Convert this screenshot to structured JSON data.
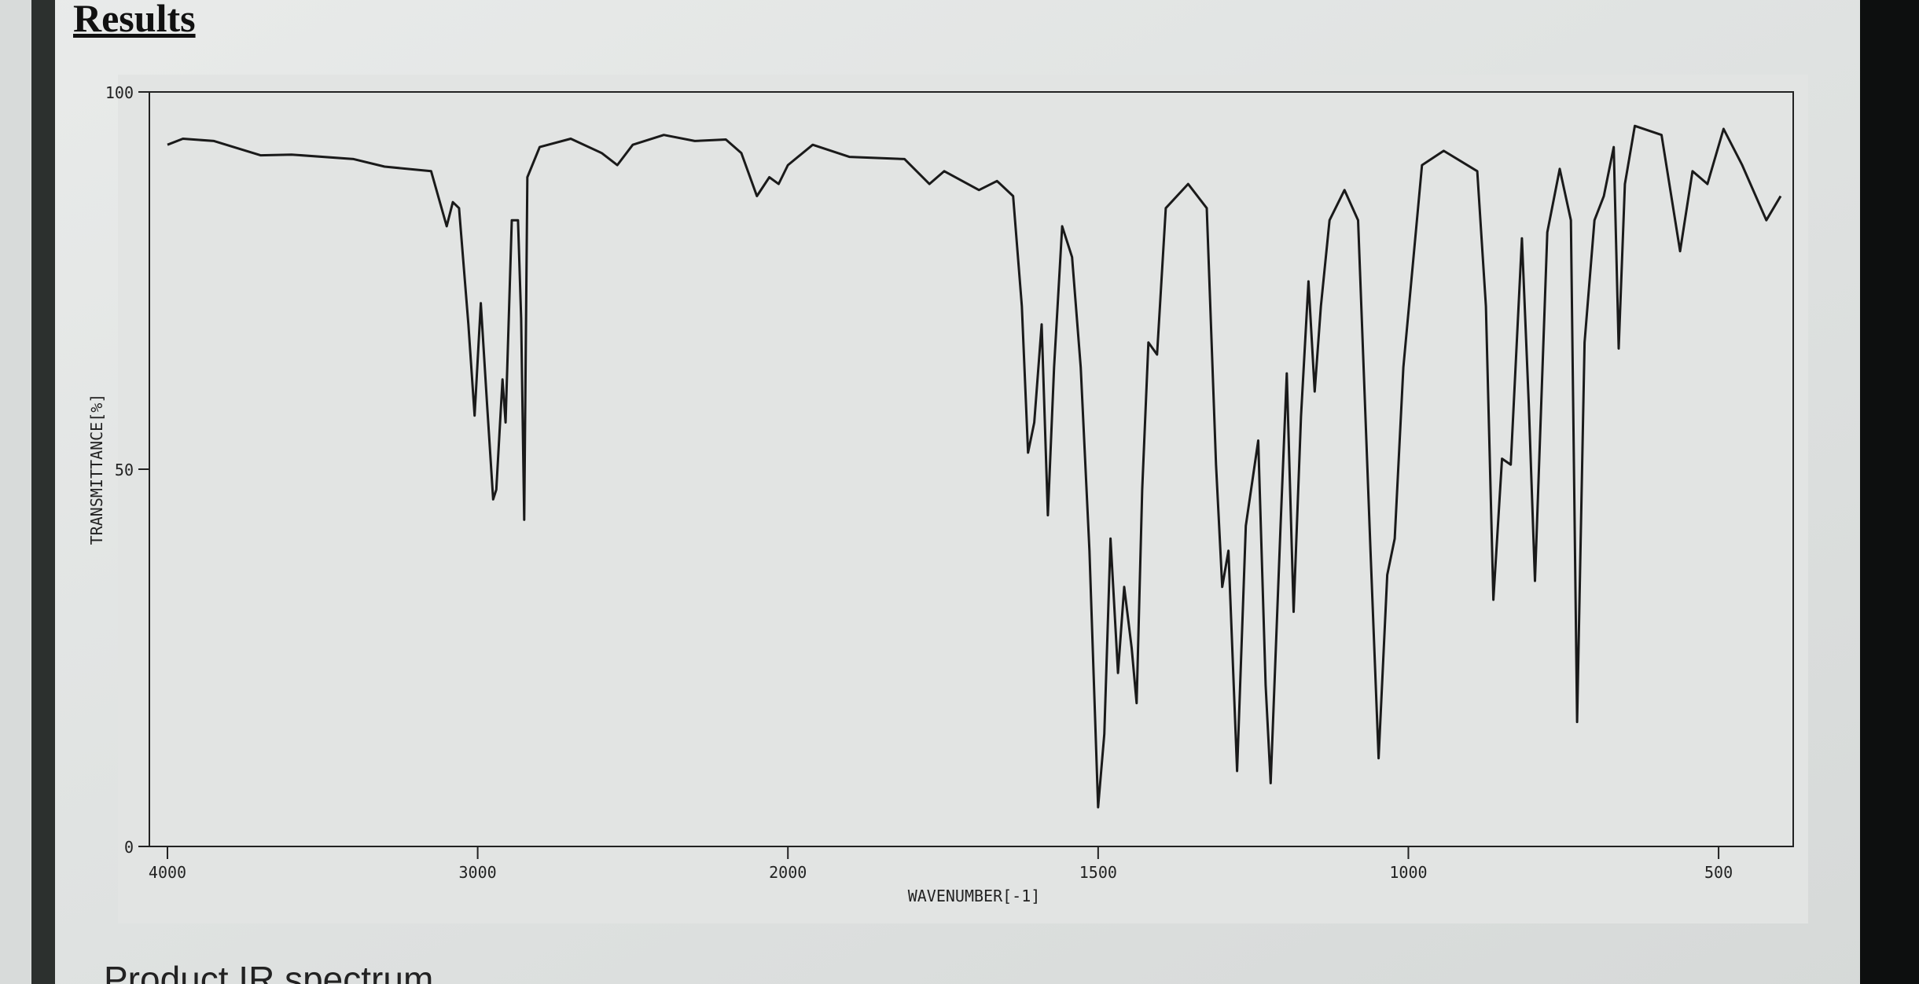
{
  "header": {
    "title": "Results"
  },
  "caption": "Product IR spectrum",
  "chart_data": {
    "type": "line",
    "xlabel": "WAVENUMBER[-1]",
    "ylabel": "TRANSMITTANCE[%]",
    "xlim": [
      4000,
      400
    ],
    "x_scale_break": 2000,
    "xticks": [
      4000,
      3000,
      2000,
      1500,
      1000,
      500
    ],
    "ylim": [
      0,
      100
    ],
    "yticks": [
      0,
      50,
      100
    ],
    "color": "#1a1a1a",
    "x": [
      4000,
      3950,
      3850,
      3700,
      3600,
      3400,
      3300,
      3150,
      3100,
      3080,
      3060,
      3030,
      3010,
      2990,
      2970,
      2950,
      2940,
      2920,
      2910,
      2890,
      2870,
      2860,
      2850,
      2840,
      2800,
      2700,
      2600,
      2550,
      2500,
      2400,
      2300,
      2200,
      2150,
      2100,
      2060,
      2030,
      2000,
      1960,
      1901,
      1812,
      1772,
      1748,
      1692,
      1663,
      1637,
      1623,
      1613,
      1603,
      1591,
      1581,
      1571,
      1558,
      1542,
      1528,
      1514,
      1500,
      1490,
      1480,
      1468,
      1458,
      1446,
      1438,
      1429,
      1419,
      1405,
      1391,
      1355,
      1325,
      1310,
      1300,
      1290,
      1276,
      1262,
      1242,
      1230,
      1222,
      1206,
      1196,
      1185,
      1173,
      1161,
      1151,
      1141,
      1127,
      1103,
      1081,
      1061,
      1048,
      1034,
      1022,
      1008,
      978,
      943,
      889,
      875,
      863,
      849,
      835,
      817,
      806,
      796,
      776,
      756,
      738,
      728,
      716,
      700,
      685,
      669,
      661,
      651,
      635,
      592,
      562,
      542,
      518,
      492,
      462,
      423,
      400
    ],
    "values": [
      93.0,
      93.8,
      93.5,
      91.6,
      91.7,
      91.1,
      90.1,
      89.5,
      82.2,
      85.4,
      84.6,
      69.2,
      57.1,
      72.0,
      58.7,
      46.0,
      47.3,
      61.9,
      56.2,
      83.0,
      83.0,
      70.0,
      43.3,
      88.7,
      92.7,
      93.8,
      91.9,
      90.3,
      93.0,
      94.3,
      93.5,
      93.7,
      91.9,
      86.2,
      88.7,
      87.8,
      90.3,
      93.0,
      91.4,
      91.1,
      87.8,
      89.5,
      87.0,
      88.2,
      86.2,
      71.6,
      52.2,
      56.2,
      69.2,
      43.9,
      63.5,
      82.2,
      78.1,
      63.5,
      39.2,
      5.2,
      14.9,
      40.8,
      23.0,
      34.4,
      26.3,
      19.0,
      47.3,
      66.8,
      65.2,
      84.6,
      87.8,
      84.6,
      50.6,
      34.4,
      39.2,
      10.0,
      42.5,
      53.8,
      21.4,
      8.4,
      42.5,
      62.7,
      31.1,
      57.0,
      74.9,
      60.3,
      71.6,
      83.0,
      87.0,
      83.0,
      39.2,
      11.7,
      36.0,
      40.8,
      63.5,
      90.3,
      92.2,
      89.5,
      71.6,
      32.7,
      51.4,
      50.6,
      80.6,
      58.7,
      35.2,
      81.4,
      89.8,
      83.0,
      16.5,
      66.8,
      83.0,
      86.2,
      92.7,
      66.0,
      87.8,
      95.5,
      94.3,
      78.9,
      89.5,
      87.8,
      95.1,
      90.3,
      83.0,
      86.2
    ]
  }
}
